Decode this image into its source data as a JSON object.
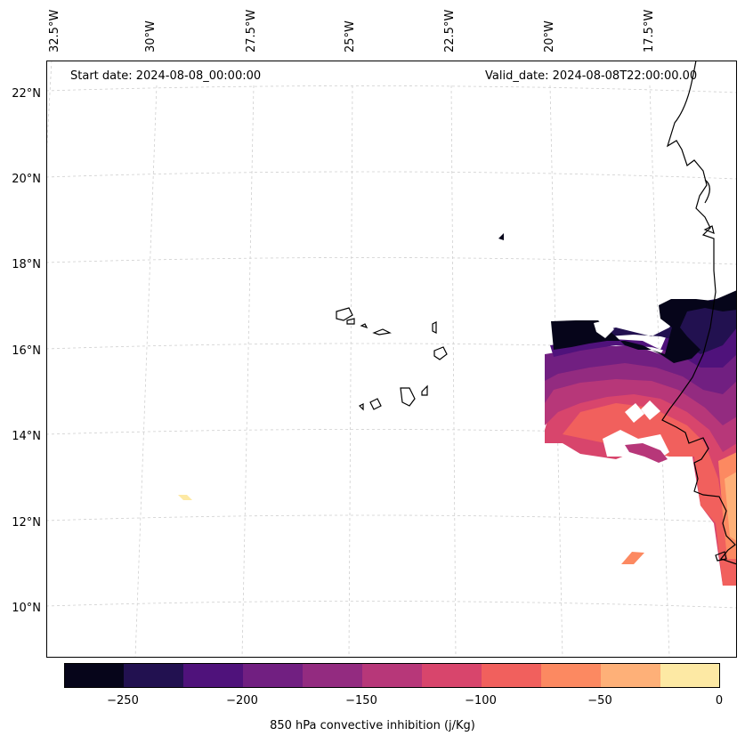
{
  "header": {
    "start_date": "Start date: 2024-08-08_00:00:00",
    "valid_date": "Valid_date: 2024-08-08T22:00:00.00"
  },
  "longitude_labels": [
    "32.5°W",
    "30°W",
    "27.5°W",
    "25°W",
    "22.5°W",
    "20°W",
    "17.5°W"
  ],
  "latitude_labels": [
    "22°N",
    "20°N",
    "18°N",
    "16°N",
    "14°N",
    "12°N",
    "10°N"
  ],
  "colorbar": {
    "label": "850 hPa convective inhibition (j/Kg)",
    "ticks": [
      "−250",
      "−200",
      "−150",
      "−100",
      "−50",
      "0"
    ],
    "levels": [
      -275,
      -250,
      -225,
      -200,
      -175,
      -150,
      -125,
      -100,
      -75,
      -50,
      -25,
      0
    ],
    "colors": [
      "#06051a",
      "#221150",
      "#4f127b",
      "#711f81",
      "#932b80",
      "#b73779",
      "#d8456c",
      "#f1605d",
      "#fc8961",
      "#feb078",
      "#fde9a4"
    ]
  },
  "map": {
    "projection": "lambert",
    "gridlines": "dashed light grey",
    "coastlines": "black"
  }
}
